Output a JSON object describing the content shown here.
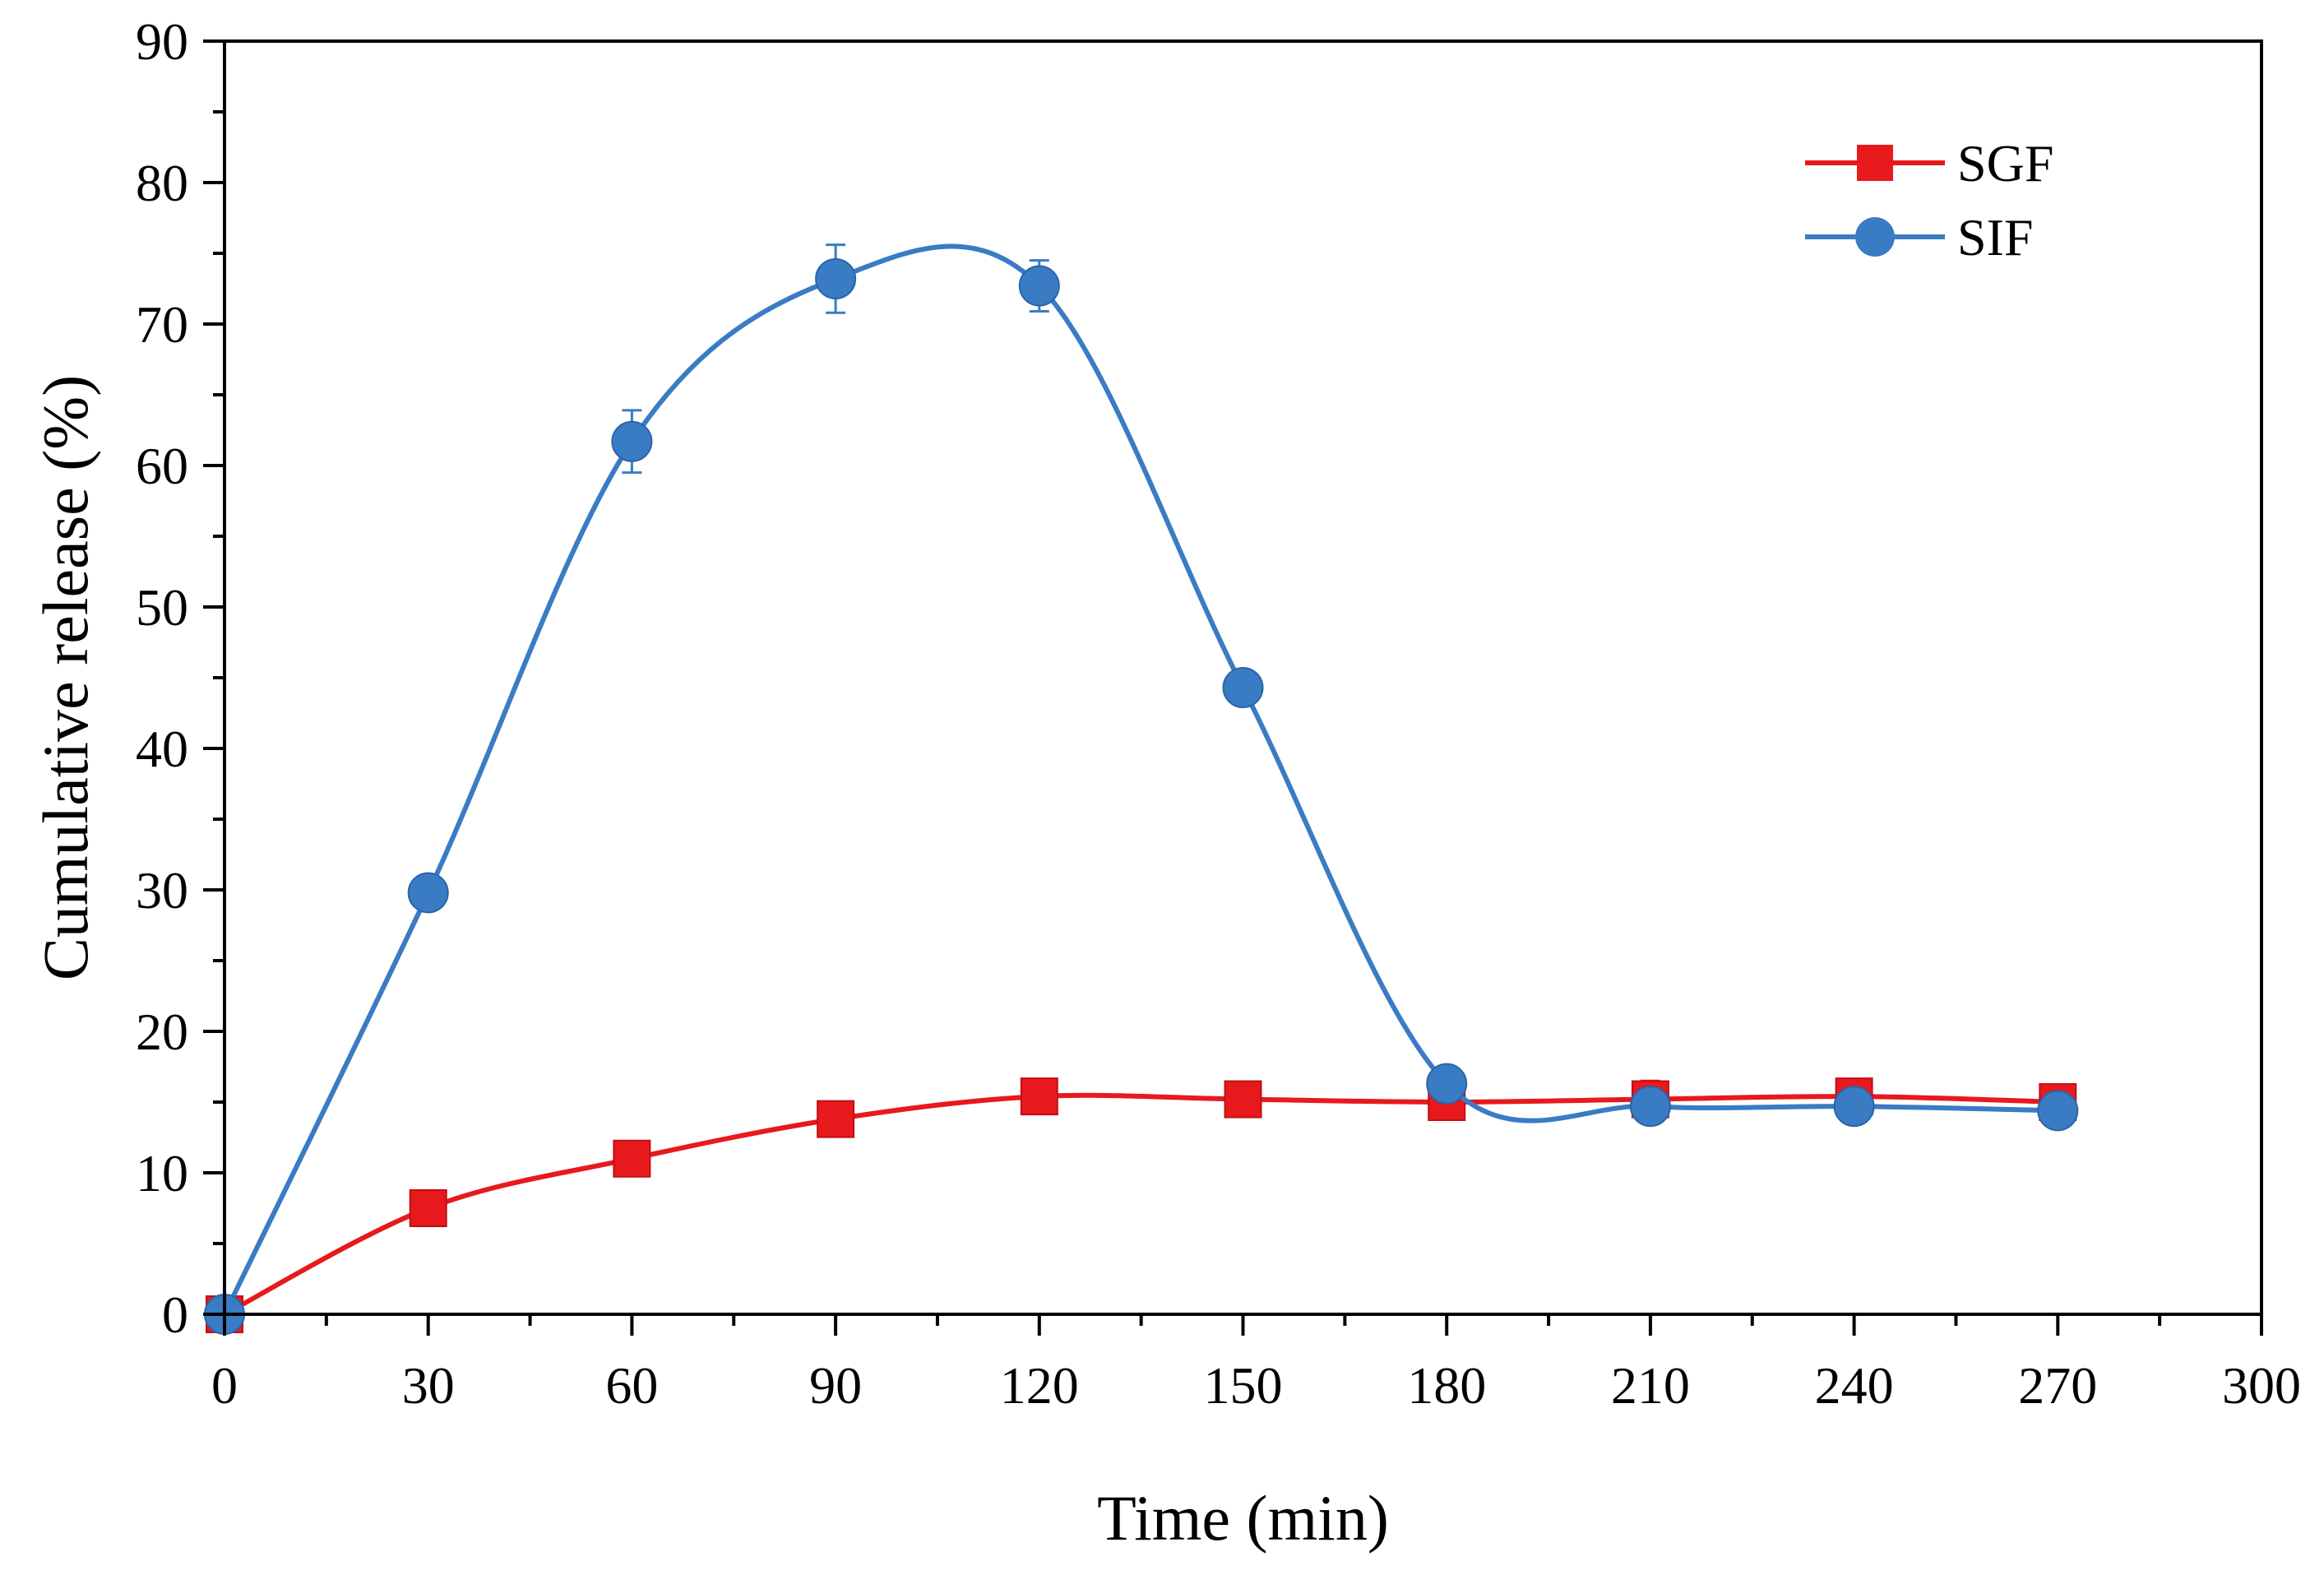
{
  "chart_data": {
    "type": "line",
    "title": "",
    "xlabel": "Time (min)",
    "ylabel": "Cumulative release (%)",
    "xlim": [
      0,
      300
    ],
    "ylim": [
      0,
      90
    ],
    "xticks": [
      "0",
      "30",
      "60",
      "90",
      "120",
      "150",
      "180",
      "210",
      "240",
      "270",
      "300"
    ],
    "yticks": [
      "0",
      "10",
      "20",
      "30",
      "40",
      "50",
      "60",
      "70",
      "80",
      "90"
    ],
    "grid": false,
    "legend_position": "top-right",
    "x": [
      0,
      30,
      60,
      90,
      120,
      150,
      180,
      210,
      240,
      270
    ],
    "series": [
      {
        "name": "SGF",
        "color": "#e8191c",
        "marker": "square",
        "values": [
          0,
          7.5,
          11.0,
          13.8,
          15.4,
          15.2,
          15.0,
          15.2,
          15.4,
          15.0
        ],
        "errors": [
          0.3,
          0.4,
          0.5,
          0.5,
          0.5,
          0.4,
          0.5,
          1.3,
          0.6,
          0.7
        ]
      },
      {
        "name": "SIF",
        "color": "#3a7cc4",
        "marker": "circle",
        "values": [
          0,
          29.8,
          61.7,
          73.2,
          72.7,
          44.3,
          16.3,
          14.7,
          14.7,
          14.4
        ],
        "errors": [
          0.3,
          0.6,
          2.2,
          2.4,
          1.8,
          0.6,
          0.6,
          0.9,
          1.1,
          0.6
        ]
      }
    ]
  }
}
